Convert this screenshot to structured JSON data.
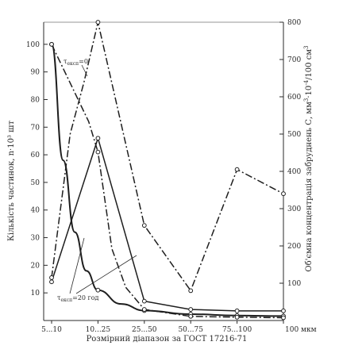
{
  "chart_data": {
    "type": "line",
    "title": "",
    "xlabel": "Розмірний діапазон за ГОСТ 17216-71",
    "ylabel_left": "Кількість частинок, n·10³ шт",
    "ylabel_right_parts": [
      "Об'ємна концентрація забруднень С, мм",
      "3",
      "·10",
      "-4",
      "/100 см",
      "3"
    ],
    "x_ticks": [
      "5...10",
      "10...25",
      "25...50",
      "50...75",
      "75...100",
      "100 мкм"
    ],
    "y_left_ticks": [
      "10",
      "20",
      "30",
      "40",
      "50",
      "60",
      "70",
      "80",
      "90",
      "100"
    ],
    "y_right_ticks": [
      "100",
      "200",
      "300",
      "400",
      "500",
      "600",
      "700",
      "800"
    ],
    "ylim_left": [
      0,
      108
    ],
    "ylim_right": [
      0,
      800
    ],
    "annotations": {
      "t0_main": "τ",
      "t0_sub": "експ",
      "t0_rest": "=0",
      "t20_main": "τ",
      "t20_sub": "експ",
      "t20_rest": "=20 год"
    },
    "series": [
      {
        "style": "solid-no-markers",
        "axis": "left",
        "points": [
          [
            0,
            100
          ],
          [
            0.25,
            58
          ],
          [
            0.5,
            32
          ],
          [
            0.75,
            18
          ],
          [
            1,
            11
          ],
          [
            1.5,
            6
          ],
          [
            2,
            3.6
          ],
          [
            3,
            2.3
          ],
          [
            4,
            1.8
          ],
          [
            5,
            1.6
          ]
        ]
      },
      {
        "style": "solid-markers",
        "axis": "left",
        "points": [
          [
            0,
            14
          ],
          [
            1,
            66
          ],
          [
            2,
            7
          ],
          [
            3,
            4
          ],
          [
            4,
            3.5
          ],
          [
            5,
            3.5
          ]
        ]
      },
      {
        "style": "dashdot-markers",
        "axis": "left",
        "points": [
          [
            0,
            100
          ],
          [
            0.8,
            72
          ],
          [
            1,
            61
          ],
          [
            1.3,
            26
          ],
          [
            1.6,
            12
          ],
          [
            2,
            4
          ],
          [
            3,
            1.5
          ],
          [
            4,
            1.2
          ],
          [
            5,
            1.0
          ]
        ]
      },
      {
        "style": "dashdot-markers",
        "axis": "right",
        "points": [
          [
            0,
            115
          ],
          [
            0.4,
            500
          ],
          [
            0.7,
            640
          ],
          [
            1,
            800
          ],
          [
            2,
            255
          ],
          [
            3,
            80
          ],
          [
            4,
            405
          ],
          [
            5,
            340
          ]
        ]
      }
    ],
    "grid": false
  }
}
